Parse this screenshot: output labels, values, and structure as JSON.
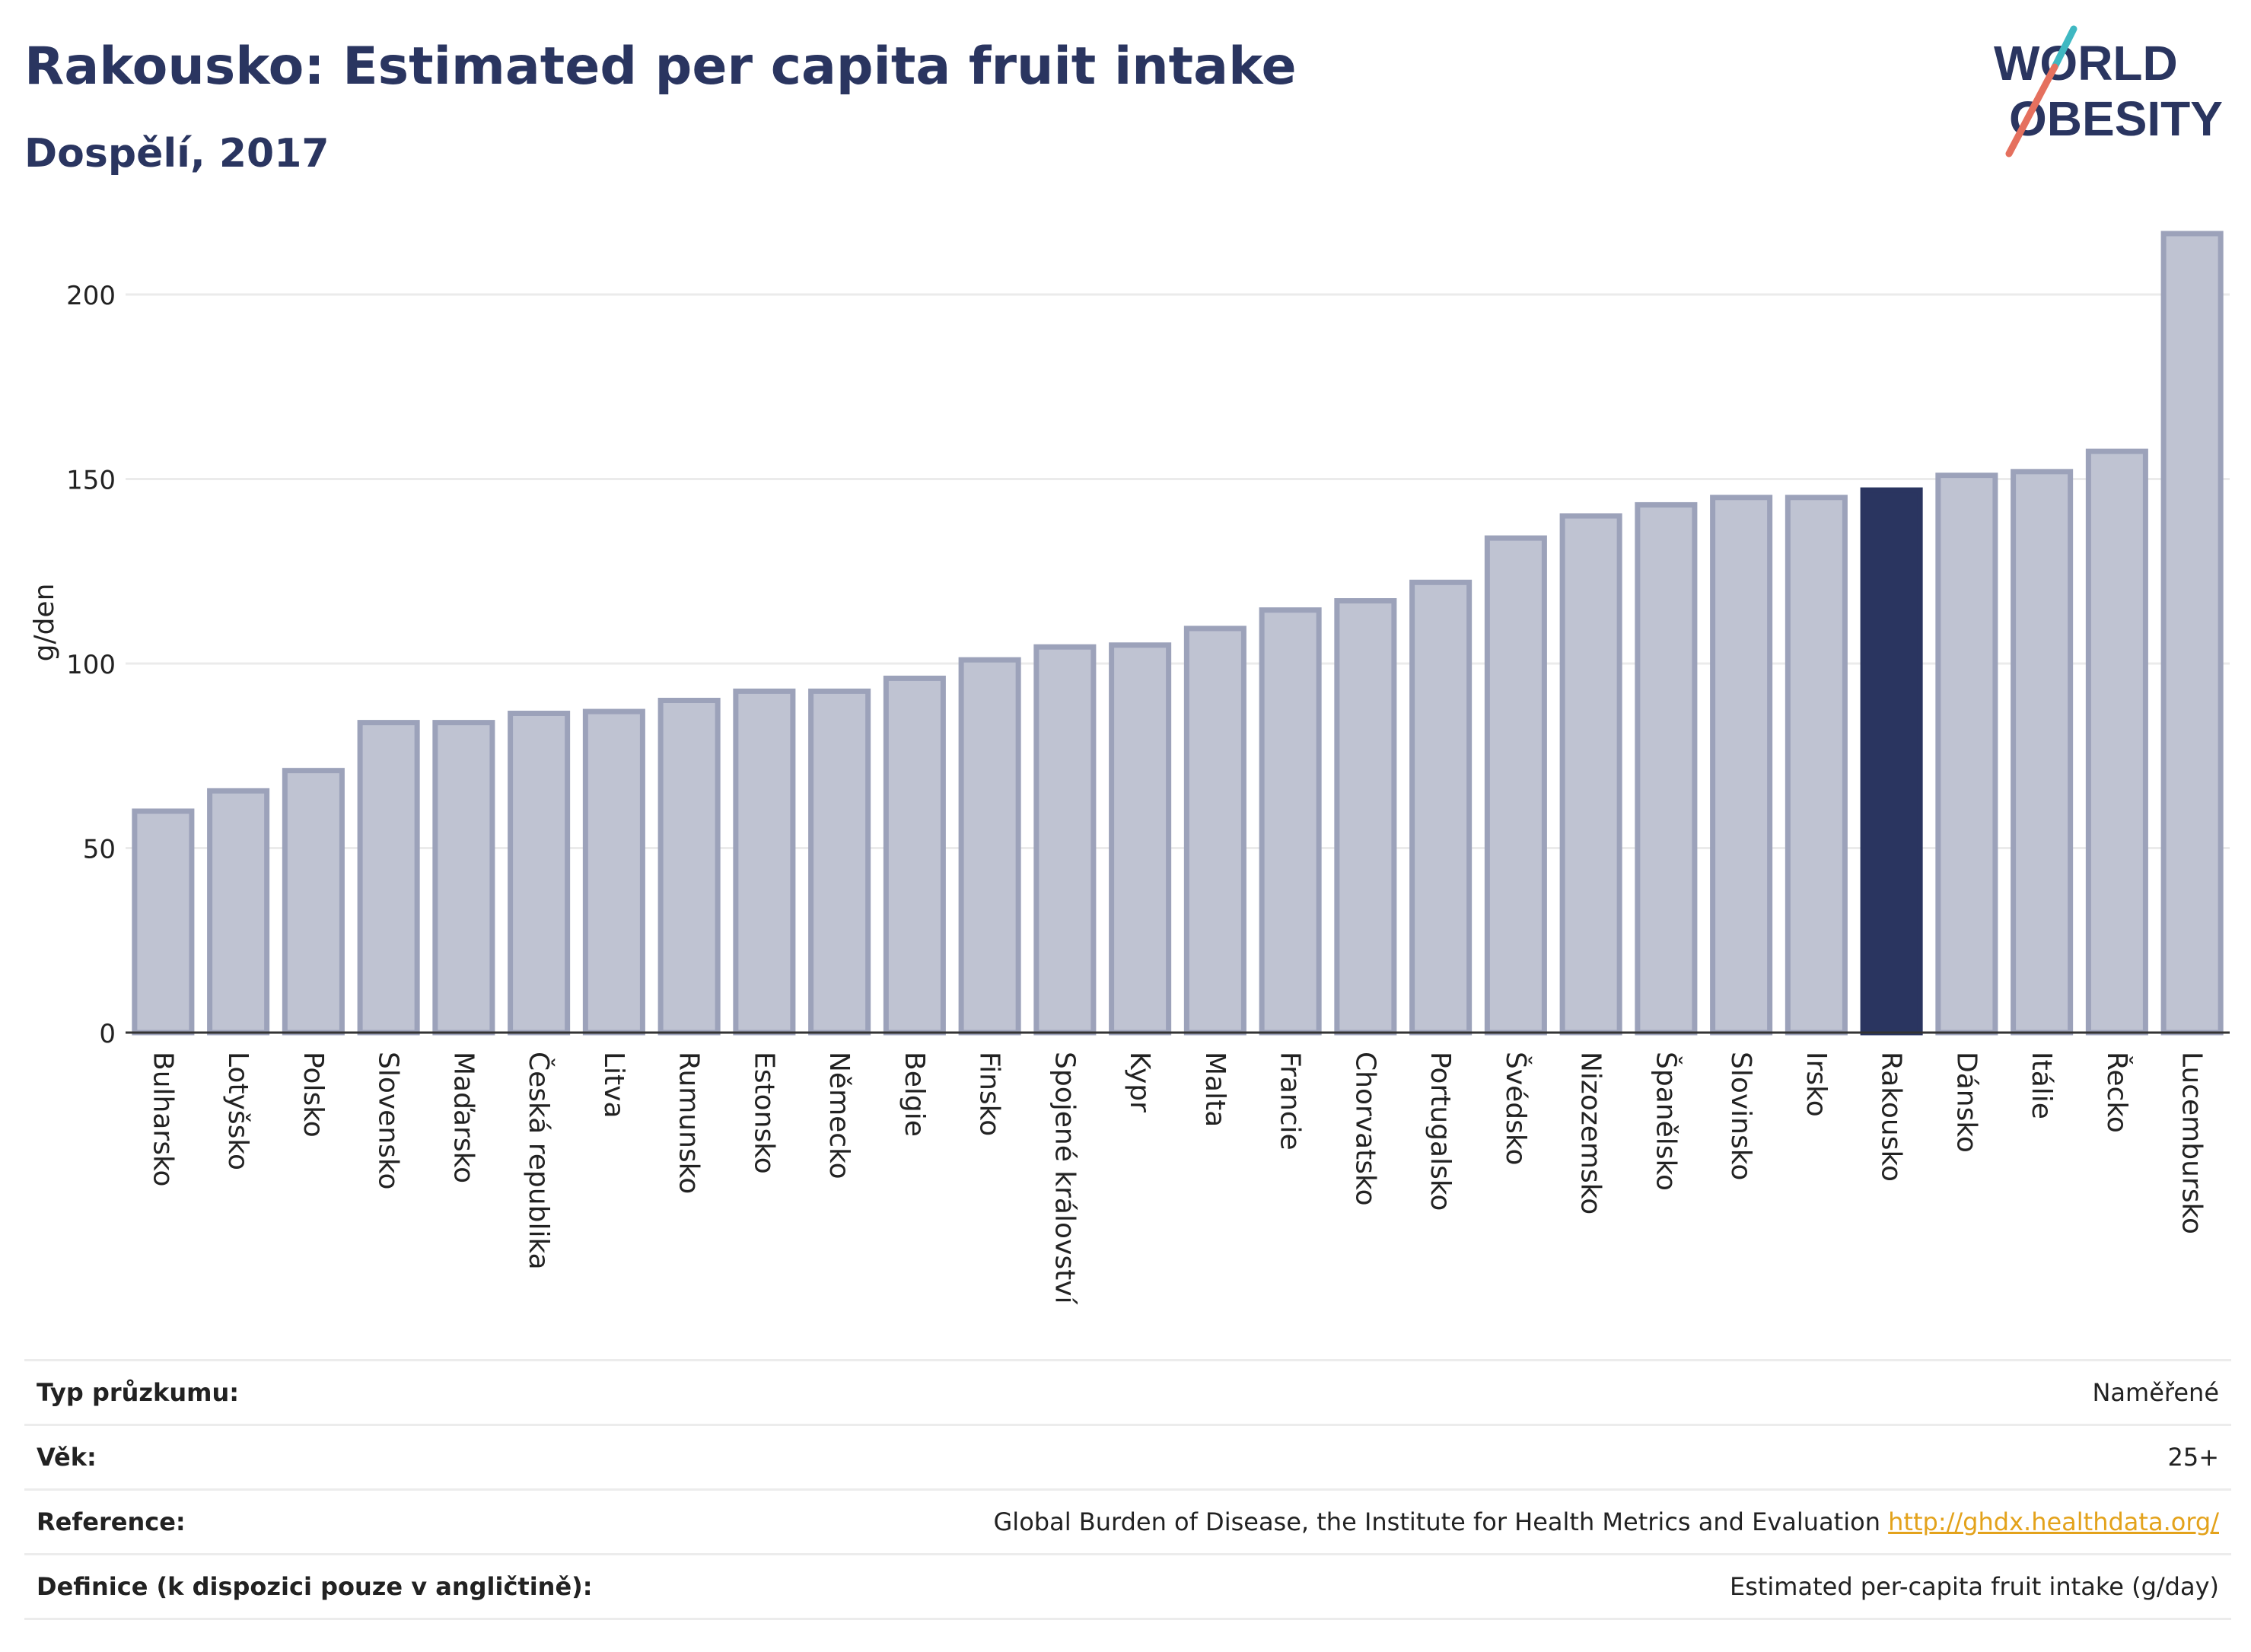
{
  "header": {
    "title": "Rakousko: Estimated per capita fruit intake",
    "subtitle": "Dospělí, 2017"
  },
  "logo": {
    "line1": "WORLD",
    "line2": "OBESITY",
    "icon": "world-obesity-logo"
  },
  "colors": {
    "highlight": "#2a3560",
    "bar_fill": "#bfc3d2",
    "bar_stroke": "#9ca2ba",
    "link": "#e3a21b"
  },
  "chart_data": {
    "type": "bar",
    "title": "Rakousko: Estimated per capita fruit intake",
    "subtitle": "Dospělí, 2017",
    "xlabel": "",
    "ylabel": "g/den",
    "ylim": [
      0,
      220
    ],
    "yticks": [
      0,
      50,
      100,
      150,
      200
    ],
    "grid": true,
    "highlight": "Rakousko",
    "categories": [
      "Bulharsko",
      "Lotyšsko",
      "Polsko",
      "Slovensko",
      "Maďarsko",
      "Česká republika",
      "Litva",
      "Rumunsko",
      "Estonsko",
      "Německo",
      "Belgie",
      "Finsko",
      "Spojené království",
      "Kypr",
      "Malta",
      "Francie",
      "Chorvatsko",
      "Portugalsko",
      "Švédsko",
      "Nizozemsko",
      "Španělsko",
      "Slovinsko",
      "Irsko",
      "Rakousko",
      "Dánsko",
      "Itálie",
      "Řecko",
      "Lucembursko"
    ],
    "values": [
      60,
      65.5,
      71,
      84,
      84,
      86.5,
      87,
      90,
      92.5,
      92.5,
      96,
      101,
      104.5,
      105,
      109.5,
      114.5,
      117,
      122,
      134,
      140,
      143,
      145,
      145,
      147,
      151,
      152,
      157.5,
      216.5
    ]
  },
  "info": {
    "rows": [
      {
        "label": "Typ průzkumu:",
        "value": "Naměřené"
      },
      {
        "label": "Věk:",
        "value": "25+"
      },
      {
        "label": "Reference:",
        "value": "Global Burden of Disease, the Institute for Health Metrics and Evaluation",
        "link": "http://ghdx.healthdata.org/"
      },
      {
        "label": "Definice (k dispozici pouze v angličtině):",
        "value": "Estimated per-capita fruit intake (g/day)"
      }
    ]
  }
}
